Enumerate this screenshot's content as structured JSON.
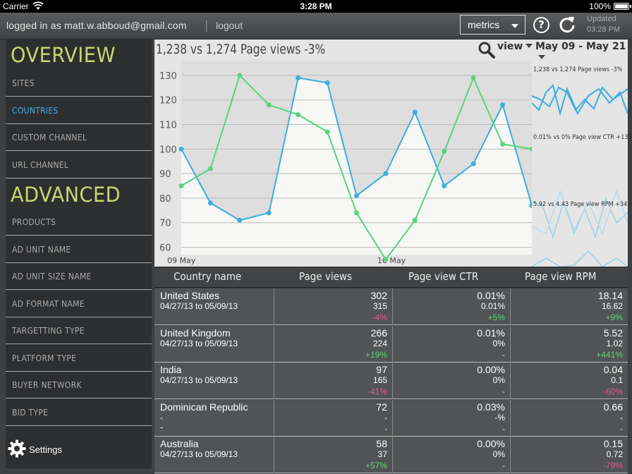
{
  "statusbar": {
    "carrier": "Carrier",
    "time": "3:28 PM",
    "battery": "100%"
  },
  "header": {
    "login_text": "logged in as matt.w.abboud@gmail.com",
    "separator": "|",
    "logout": "logout",
    "metrics_label": "metrics",
    "help": "?",
    "updated_label": "Updated",
    "updated_time": "03:28 PM"
  },
  "sidebar": {
    "overview_title": "OVERVIEW",
    "overview_items": [
      {
        "label": "SITES",
        "active": false
      },
      {
        "label": "COUNTRIES",
        "active": true
      },
      {
        "label": "CUSTOM CHANNEL",
        "active": false
      },
      {
        "label": "URL CHANNEL",
        "active": false
      }
    ],
    "advanced_title": "ADVANCED",
    "advanced_items": [
      {
        "label": "PRODUCTS"
      },
      {
        "label": "AD UNIT NAME"
      },
      {
        "label": "AD UNIT SIZE NAME"
      },
      {
        "label": "AD FORMAT NAME"
      },
      {
        "label": "TARGETTING TYPE"
      },
      {
        "label": "PLATFORM TYPE"
      },
      {
        "label": "BUYER NETWORK"
      },
      {
        "label": "BID TYPE"
      }
    ],
    "settings_label": "Settings"
  },
  "chart_panel": {
    "title": "1,238 vs 1,274 Page views -3%",
    "view_label": "view",
    "date_range": "May 09 - May 21",
    "mini_labels": [
      "1,238 vs 1,274 Page views -3%",
      "0.01% vs 0% Page view CTR +131%",
      "5.92 vs 4.43 Page view RPM +34%"
    ]
  },
  "chart_data": {
    "type": "line",
    "x": [
      "09 May",
      "10 May",
      "11 May",
      "12 May",
      "13 May",
      "14 May",
      "15 May",
      "16 May",
      "17 May",
      "18 May",
      "19 May",
      "20 May",
      "21 May"
    ],
    "x_tick_labels": [
      "09 May",
      "16 May"
    ],
    "y_ticks": [
      60,
      70,
      80,
      90,
      100,
      110,
      120,
      130
    ],
    "ylim": [
      57,
      136
    ],
    "series": [
      {
        "color": "#3aaee0",
        "fill": true,
        "values": [
          100,
          78,
          71,
          74,
          129,
          127,
          81,
          90,
          115,
          85,
          94,
          118,
          77
        ]
      },
      {
        "color": "#56d47d",
        "fill": false,
        "values": [
          85,
          92,
          130,
          118,
          114,
          107,
          74,
          55,
          71,
          99,
          129,
          102,
          100
        ]
      }
    ],
    "grid": true
  },
  "table": {
    "headers": [
      "Country name",
      "Page views",
      "Page view CTR",
      "Page view RPM"
    ],
    "rows": [
      {
        "country": "United States",
        "dates": "04/27/13 to 05/09/13",
        "dates2": "",
        "pv": [
          "302",
          "315",
          "-4%"
        ],
        "pv_t": "neg",
        "ctr": [
          "0.01%",
          "0.01%",
          "+5%"
        ],
        "ctr_t": "pos",
        "rpm": [
          "18.14",
          "16.62",
          "+9%"
        ],
        "rpm_t": "pos"
      },
      {
        "country": "United Kingdom",
        "dates": "04/27/13 to 05/09/13",
        "dates2": "",
        "pv": [
          "266",
          "224",
          "+19%"
        ],
        "pv_t": "pos",
        "ctr": [
          "0.01%",
          "0%",
          "-"
        ],
        "ctr_t": "neu",
        "rpm": [
          "5.52",
          "1.02",
          "+441%"
        ],
        "rpm_t": "pos"
      },
      {
        "country": "India",
        "dates": "04/27/13 to 05/09/13",
        "dates2": "",
        "pv": [
          "97",
          "165",
          "-41%"
        ],
        "pv_t": "neg",
        "ctr": [
          "0.00%",
          "0%",
          "-"
        ],
        "ctr_t": "neu",
        "rpm": [
          "0.04",
          "0.1",
          "-60%"
        ],
        "rpm_t": "neg"
      },
      {
        "country": "Dominican Republic",
        "dates": "-",
        "dates2": "-",
        "pv": [
          "72",
          "-",
          "-"
        ],
        "pv_t": "neu",
        "ctr": [
          "0.03%",
          "-%",
          "-"
        ],
        "ctr_t": "neu",
        "rpm": [
          "0.66",
          "-",
          "-"
        ],
        "rpm_t": "neu"
      },
      {
        "country": "Australia",
        "dates": "04/27/13 to 05/09/13",
        "dates2": "",
        "pv": [
          "58",
          "37",
          "+57%"
        ],
        "pv_t": "pos",
        "ctr": [
          "0.00%",
          "0%",
          "-"
        ],
        "ctr_t": "neu",
        "rpm": [
          "0.15",
          "0.72",
          "-79%"
        ],
        "rpm_t": "neg"
      }
    ]
  }
}
